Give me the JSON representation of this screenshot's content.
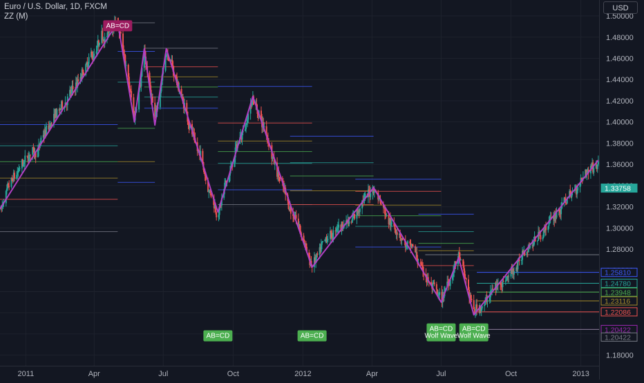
{
  "header": {
    "title": "Euro / U.S. Dollar, 1D, FXCM",
    "indicator": "ZZ (M)"
  },
  "currency_button": "USD",
  "colors": {
    "background": "#131722",
    "grid": "#1e222d",
    "candle_up": "#26a69a",
    "candle_down": "#ef5350",
    "zigzag": "#b23fc4",
    "label_green": "#4caf50",
    "label_magenta": "#9c1c5f"
  },
  "chart_data": {
    "type": "candlestick",
    "title": "Euro / U.S. Dollar, 1D, FXCM",
    "ylim": [
      1.17,
      1.515
    ],
    "y_ticks": [
      "1.50000",
      "1.48000",
      "1.46000",
      "1.44000",
      "1.42000",
      "1.40000",
      "1.38000",
      "1.36000",
      "1.34000",
      "1.32000",
      "1.30000",
      "1.28000",
      "1.26000",
      "1.24000",
      "1.22000",
      "1.20000",
      "1.18000"
    ],
    "x_ticks": [
      {
        "label": "2011",
        "x": "2011-01-01"
      },
      {
        "label": "Apr",
        "x": "2011-04-01"
      },
      {
        "label": "Jul",
        "x": "2011-07-01"
      },
      {
        "label": "Oct",
        "x": "2011-10-01"
      },
      {
        "label": "2012",
        "x": "2012-01-01"
      },
      {
        "label": "Apr",
        "x": "2012-04-01"
      },
      {
        "label": "Jul",
        "x": "2012-07-01"
      },
      {
        "label": "Oct",
        "x": "2012-10-01"
      },
      {
        "label": "2013",
        "x": "2013-01-01"
      }
    ],
    "x_range": [
      "2010-11-28",
      "2013-01-25"
    ],
    "zigzag": [
      {
        "x": "2010-11-28",
        "y": 1.318
      },
      {
        "x": "2011-05-02",
        "y": 1.494
      },
      {
        "x": "2011-05-24",
        "y": 1.4
      },
      {
        "x": "2011-06-06",
        "y": 1.469
      },
      {
        "x": "2011-06-20",
        "y": 1.397
      },
      {
        "x": "2011-07-05",
        "y": 1.469
      },
      {
        "x": "2011-09-11",
        "y": 1.315
      },
      {
        "x": "2011-10-27",
        "y": 1.424
      },
      {
        "x": "2012-01-13",
        "y": 1.263
      },
      {
        "x": "2012-04-03",
        "y": 1.338
      },
      {
        "x": "2012-07-01",
        "y": 1.23
      },
      {
        "x": "2012-07-24",
        "y": 1.272
      },
      {
        "x": "2012-08-13",
        "y": 1.218
      },
      {
        "x": "2013-01-24",
        "y": 1.364
      }
    ],
    "candles_generated_between_pivots": true,
    "level_lines": [
      {
        "value": 1.27474,
        "label": "1.27474",
        "color": "#787b86",
        "from": "2012-06-10"
      },
      {
        "value": 1.2581,
        "label": "1.25810",
        "color": "#3d5afe",
        "from": "2012-08-17"
      },
      {
        "value": 1.2478,
        "label": "1.24780",
        "color": "#26a69a",
        "from": "2012-08-17"
      },
      {
        "value": 1.23948,
        "label": "1.23948",
        "color": "#4caf50",
        "from": "2012-08-17"
      },
      {
        "value": 1.23116,
        "label": "1.23116",
        "color": "#a68b2a",
        "from": "2012-08-17"
      },
      {
        "value": 1.22086,
        "label": "1.22086",
        "color": "#ef5350",
        "from": "2012-08-17"
      },
      {
        "value": 1.20422,
        "label": "1.20422",
        "color": "#9c27b0",
        "from": "2012-08-17"
      },
      {
        "value": 1.20422,
        "label": "1.20422",
        "color": "#787b86",
        "from": "2012-08-17"
      }
    ],
    "price_labels": [
      {
        "value": 1.33758,
        "label": "1.33758",
        "color": "#26a69a",
        "filled": true
      },
      {
        "value": 1.2581,
        "label": "1.25810",
        "color": "#3d5afe",
        "filled": false
      },
      {
        "value": 1.2478,
        "label": "1.24780",
        "color": "#26a69a",
        "filled": false
      },
      {
        "value": 1.23948,
        "label": "1.23948",
        "color": "#4caf50",
        "filled": false
      },
      {
        "value": 1.23116,
        "label": "1.23116",
        "color": "#a68b2a",
        "filled": false
      },
      {
        "value": 1.22086,
        "label": "1.22086",
        "color": "#ef5350",
        "filled": false
      },
      {
        "value": 1.20422,
        "label": "1.20422",
        "color": "#9c27b0",
        "filled": false
      },
      {
        "value": 1.20422,
        "label": "1.20422",
        "color": "#787b86",
        "filled": false
      }
    ],
    "fib_groups": [
      {
        "from": "2010-11-28",
        "to": "2011-05-02",
        "levels": [
          {
            "y": 1.3975,
            "color": "#3d5afe"
          },
          {
            "y": 1.3775,
            "color": "#26a69a"
          },
          {
            "y": 1.3625,
            "color": "#4caf50"
          },
          {
            "y": 1.347,
            "color": "#a68b2a"
          },
          {
            "y": 1.327,
            "color": "#ef5350"
          },
          {
            "y": 1.2965,
            "color": "#787b86"
          }
        ]
      },
      {
        "from": "2011-05-02",
        "to": "2011-06-20",
        "levels": [
          {
            "y": 1.4935,
            "color": "#787b86"
          },
          {
            "y": 1.4665,
            "color": "#3d5afe"
          },
          {
            "y": 1.4375,
            "color": "#26a69a"
          },
          {
            "y": 1.394,
            "color": "#4caf50"
          },
          {
            "y": 1.3625,
            "color": "#a68b2a"
          },
          {
            "y": 1.343,
            "color": "#3d5afe"
          }
        ]
      },
      {
        "from": "2011-06-06",
        "to": "2011-09-11",
        "levels": [
          {
            "y": 1.4695,
            "color": "#787b86"
          },
          {
            "y": 1.452,
            "color": "#ef5350"
          },
          {
            "y": 1.4425,
            "color": "#a68b2a"
          },
          {
            "y": 1.433,
            "color": "#4caf50"
          },
          {
            "y": 1.4235,
            "color": "#26a69a"
          },
          {
            "y": 1.413,
            "color": "#3d5afe"
          }
        ]
      },
      {
        "from": "2011-09-11",
        "to": "2012-01-13",
        "levels": [
          {
            "y": 1.4335,
            "color": "#3d5afe"
          },
          {
            "y": 1.399,
            "color": "#ef5350"
          },
          {
            "y": 1.382,
            "color": "#a68b2a"
          },
          {
            "y": 1.372,
            "color": "#4caf50"
          },
          {
            "y": 1.361,
            "color": "#26a69a"
          },
          {
            "y": 1.336,
            "color": "#3d5afe"
          },
          {
            "y": 1.322,
            "color": "#787b86"
          }
        ]
      },
      {
        "from": "2011-12-15",
        "to": "2012-04-03",
        "levels": [
          {
            "y": 1.3865,
            "color": "#3d5afe"
          },
          {
            "y": 1.3615,
            "color": "#26a69a"
          },
          {
            "y": 1.349,
            "color": "#4caf50"
          },
          {
            "y": 1.335,
            "color": "#a68b2a"
          },
          {
            "y": 1.322,
            "color": "#ef5350"
          }
        ]
      },
      {
        "from": "2012-03-10",
        "to": "2012-07-01",
        "levels": [
          {
            "y": 1.346,
            "color": "#3d5afe"
          },
          {
            "y": 1.3345,
            "color": "#ef5350"
          },
          {
            "y": 1.3215,
            "color": "#a68b2a"
          },
          {
            "y": 1.3115,
            "color": "#4caf50"
          },
          {
            "y": 1.3015,
            "color": "#26a69a"
          },
          {
            "y": 1.282,
            "color": "#3d5afe"
          }
        ]
      },
      {
        "from": "2012-06-01",
        "to": "2012-08-13",
        "levels": [
          {
            "y": 1.313,
            "color": "#3d5afe"
          },
          {
            "y": 1.2965,
            "color": "#26a69a"
          },
          {
            "y": 1.2855,
            "color": "#4caf50"
          },
          {
            "y": 1.2785,
            "color": "#a68b2a"
          },
          {
            "y": 1.2645,
            "color": "#ef5350"
          }
        ]
      }
    ],
    "pattern_labels": [
      {
        "lines": [
          "AB=CD"
        ],
        "x": "2011-05-02",
        "y": 1.4855,
        "color": "#9c1c5f",
        "anchor": "top"
      },
      {
        "lines": [
          "AB=CD"
        ],
        "x": "2011-09-11",
        "y": 1.193,
        "color": "#4caf50",
        "anchor": "bottom"
      },
      {
        "lines": [
          "AB=CD"
        ],
        "x": "2012-01-13",
        "y": 1.193,
        "color": "#4caf50",
        "anchor": "bottom"
      },
      {
        "lines": [
          "AB=CD",
          "Wolf Wave"
        ],
        "x": "2012-07-01",
        "y": 1.193,
        "color": "#4caf50",
        "anchor": "bottom"
      },
      {
        "lines": [
          "AB=CD",
          "Wolf Wave"
        ],
        "x": "2012-08-13",
        "y": 1.193,
        "color": "#4caf50",
        "anchor": "bottom"
      }
    ]
  }
}
